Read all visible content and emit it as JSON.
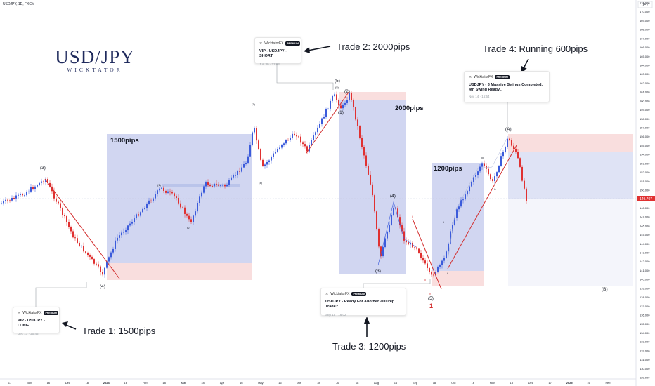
{
  "header": {
    "symbol_line": "USDJPY, 1D, FXCM"
  },
  "brand": {
    "title": "USD/JPY",
    "subtitle": "WICKTATOR"
  },
  "colors": {
    "up": "#3b5bdb",
    "down": "#e03131",
    "bluebox": "#c9cfee",
    "redbox": "#f9dede",
    "trend": "#d32f2f"
  },
  "chart_data": {
    "type": "candlestick",
    "y_axis": {
      "unit": "JPY",
      "min": 129,
      "max": 171,
      "step": 1,
      "side": "right"
    },
    "x_axis": {
      "tick_labels": [
        "17",
        "Nov",
        "16",
        "Dec",
        "18",
        "2024",
        "16",
        "Feb",
        "18",
        "Mar",
        "18",
        "Apr",
        "16",
        "May",
        "16",
        "Jun",
        "18",
        "Jul",
        "18",
        "Aug",
        "16",
        "Sep",
        "18",
        "Oct",
        "16",
        "Nov",
        "18",
        "Dec",
        "17",
        "2025",
        "16",
        "Feb"
      ]
    },
    "last_price": "149.707",
    "grid": false
  },
  "annotations": {
    "box_labels": [
      "1500pips",
      "2000pips",
      "1200pips"
    ],
    "trades": [
      "Trade 1: 1500pips",
      "Trade 2: 2000pips",
      "Trade 3: 1200pips",
      "Trade 4: Running 600pips"
    ],
    "waves": {
      "w3": "(3)",
      "w4": "(4)",
      "w1s": "(1)",
      "w2s": "(2)",
      "w3s": "(3)",
      "w4s": "(4)",
      "big5": "5",
      "w5p": "(5)",
      "w5s": "(5)",
      "w2": "(2)",
      "w1": "(1)",
      "w3b": "(3)",
      "w4b": "(4)",
      "w5e": "(5)",
      "one": "1",
      "wA": "(A)",
      "wB": "(B)",
      "ii": "ii",
      "iii": "iii",
      "iv": "iv",
      "i": "i",
      "v": "v"
    }
  },
  "cards": [
    {
      "author": "WicktatorFX",
      "badge": "PREMIUM",
      "title": "VIP - USDJPY - LONG",
      "date": "Dec 17 · 20:46"
    },
    {
      "author": "WicktatorFX",
      "badge": "PREMIUM",
      "title": "VIP - USDJPY - SHORT",
      "date": "Jun 30 · 21:03"
    },
    {
      "author": "WicktatorFX",
      "badge": "PREMIUM",
      "title": "USDJPY - Ready For Another 2000pip Trade?",
      "date": "Sep 15 · 16:02"
    },
    {
      "author": "WicktatorFX",
      "badge": "PREMIUM",
      "title": "USDJPY - 3 Massive Swings Completed. 4th Swing Ready...",
      "date": "Nov 14 · 16:54"
    }
  ]
}
